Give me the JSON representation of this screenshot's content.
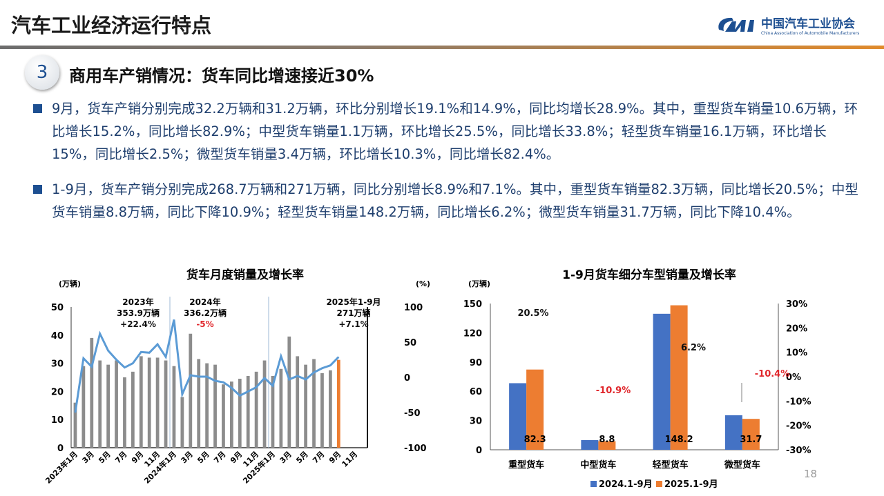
{
  "header": {
    "title": "汽车工业经济运行特点",
    "logo_cn": "中国汽车工业协会",
    "logo_en": "China Association of Automobile Manufacturers",
    "logo_mark": "CAAM"
  },
  "section": {
    "number": "3",
    "heading": "商用车产销情况：货车同比增速接近30%"
  },
  "bullets": [
    "9月，货车产销分别完成32.2万辆和31.2万辆，环比分别增长19.1%和14.9%，同比均增长28.9%。其中，重型货车销量10.6万辆，环比增长15.2%，同比增长82.9%；中型货车销量1.1万辆，环比增长25.5%，同比增长33.8%；轻型货车销量16.1万辆，环比增长15%，同比增长2.5%；微型货车销量3.4万辆，环比增长10.3%，同比增长82.4%。",
    "1-9月，货车产销分别完成268.7万辆和271万辆，同比分别增长8.9%和7.1%。其中，重型货车销量82.3万辆，同比增长20.5%；中型货车销量8.8万辆，同比下降10.9%；轻型货车销量148.2万辆，同比增长6.2%；微型货车销量31.7万辆，同比下降10.4%。"
  ],
  "page_number": "18",
  "chart_data": [
    {
      "type": "bar+line",
      "title": "货车月度销量及增长率",
      "ylabel": "(万辆)",
      "y2label": "(%)",
      "ylim": [
        0,
        50
      ],
      "y2lim": [
        -100,
        100
      ],
      "yticks": [
        "0",
        "10",
        "20",
        "30",
        "40",
        "50"
      ],
      "y2ticks": [
        "-100",
        "-50",
        "0",
        "50",
        "100"
      ],
      "xticks": [
        "2023年1月",
        "3月",
        "5月",
        "7月",
        "9月",
        "11月",
        "2024年1月",
        "3月",
        "5月",
        "7月",
        "9月",
        "11月",
        "2025年1月",
        "3月",
        "5月",
        "7月",
        "9月",
        "11月"
      ],
      "bar_color": "#8c8c8c",
      "highlight_color": "#ed7d31",
      "line_color": "#5b9bd5",
      "sales": [
        16,
        29,
        39,
        31,
        29.5,
        31,
        25,
        27,
        32.5,
        32,
        32,
        31,
        29,
        18,
        40.5,
        31.5,
        30,
        29.5,
        22.5,
        23.5,
        24.5,
        25.5,
        27,
        31,
        25.5,
        28,
        39.5,
        32.5,
        29.5,
        31.5,
        26.5,
        27.5,
        31.2
      ],
      "growth": [
        -50,
        27,
        15,
        62,
        38,
        25,
        14,
        20,
        36,
        35,
        47,
        29,
        82,
        -24,
        3,
        1,
        1,
        -5,
        -7,
        -15,
        -26,
        -20,
        -14,
        -1,
        -12,
        30,
        -3,
        2,
        -3,
        7,
        13,
        17,
        29
      ],
      "annotations": [
        {
          "year": "2023年",
          "total": "353.9万辆",
          "growth": "+22.4%"
        },
        {
          "year": "2024年",
          "total": "336.2万辆",
          "growth": "-5%"
        },
        {
          "year": "2025年1-9月",
          "total": "271万辆",
          "growth": "+7.1%"
        }
      ]
    },
    {
      "type": "bar",
      "title": "1-9月货车细分车型销量及增长率",
      "ylabel": "(万辆)",
      "ylim": [
        0,
        150
      ],
      "y2lim": [
        -0.3,
        0.3
      ],
      "yticks": [
        "0",
        "30",
        "60",
        "90",
        "120",
        "150"
      ],
      "y2ticks": [
        "-30%",
        "-20%",
        "-10%",
        "0%",
        "10%",
        "20%",
        "30%"
      ],
      "categories": [
        "重型货车",
        "中型货车",
        "轻型货车",
        "微型货车"
      ],
      "series": [
        {
          "name": "2024.1-9月",
          "color": "#4472c4",
          "values": [
            68.3,
            9.9,
            139.5,
            35.4
          ]
        },
        {
          "name": "2025.1-9月",
          "color": "#ed7d31",
          "values": [
            82.3,
            8.8,
            148.2,
            31.7
          ]
        }
      ],
      "value_labels": [
        "82.3",
        "8.8",
        "148.2",
        "31.7"
      ],
      "growth_labels": [
        "20.5%",
        "-10.9%",
        "6.2%",
        "-10.4%"
      ],
      "growth": [
        20.5,
        -10.9,
        6.2,
        -10.4
      ],
      "negative_color": "#e0262b"
    }
  ]
}
